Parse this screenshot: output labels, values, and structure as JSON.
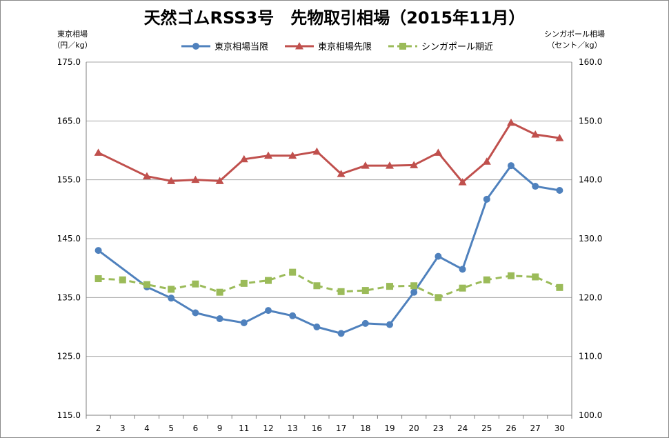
{
  "chart_data": {
    "type": "line",
    "title": "天然ゴムRSS3号　先物取引相場（2015年11月）",
    "y_left_label": [
      "東京相場",
      "（円／kg）"
    ],
    "y_right_label": [
      "シンガポール相場",
      "（セント／kg）"
    ],
    "categories": [
      "2",
      "3",
      "4",
      "5",
      "6",
      "9",
      "11",
      "12",
      "13",
      "16",
      "17",
      "18",
      "19",
      "20",
      "23",
      "24",
      "25",
      "26",
      "27",
      "30"
    ],
    "y_left": {
      "min": 115.0,
      "max": 175.0,
      "ticks": [
        "115.0",
        "125.0",
        "135.0",
        "145.0",
        "155.0",
        "165.0",
        "175.0"
      ]
    },
    "y_right": {
      "min": 100.0,
      "max": 160.0,
      "ticks": [
        "100.0",
        "110.0",
        "120.0",
        "130.0",
        "140.0",
        "150.0",
        "160.0"
      ]
    },
    "grid": true,
    "legend_position": "top",
    "series": [
      {
        "name": "東京相場当限",
        "axis": "left",
        "color": "#4f81bd",
        "marker": "circle",
        "dash": false,
        "values": [
          143.0,
          null,
          136.8,
          134.9,
          132.4,
          131.4,
          130.7,
          132.8,
          131.9,
          130.0,
          128.9,
          130.6,
          130.4,
          135.9,
          142.0,
          139.8,
          151.7,
          157.4,
          153.9,
          153.2
        ]
      },
      {
        "name": "東京相場先限",
        "axis": "left",
        "color": "#c0504d",
        "marker": "triangle",
        "dash": false,
        "values": [
          159.6,
          null,
          155.6,
          154.8,
          155.0,
          154.8,
          158.5,
          159.1,
          159.1,
          159.8,
          156.0,
          157.4,
          157.4,
          157.5,
          159.6,
          154.6,
          158.1,
          164.7,
          162.7,
          162.1
        ]
      },
      {
        "name": "シンガポール期近",
        "axis": "right",
        "color": "#9bbb59",
        "marker": "square",
        "dash": true,
        "values": [
          123.2,
          123.0,
          122.2,
          121.4,
          122.3,
          120.9,
          122.4,
          122.9,
          124.3,
          122.0,
          121.0,
          121.2,
          121.9,
          122.0,
          120.0,
          121.6,
          123.0,
          123.7,
          123.5,
          121.7
        ]
      }
    ]
  }
}
